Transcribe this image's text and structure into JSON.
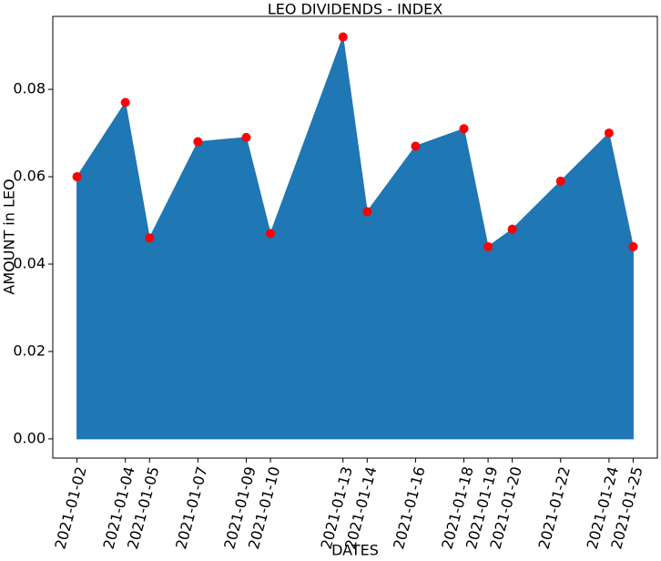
{
  "chart_data": {
    "type": "area",
    "title": "LEO DIVIDENDS - INDEX",
    "x_label": "DATES",
    "y_label": "AMOUNT in LEO",
    "x": [
      "2021-01-02",
      "2021-01-04",
      "2021-01-05",
      "2021-01-07",
      "2021-01-09",
      "2021-01-10",
      "2021-01-13",
      "2021-01-14",
      "2021-01-16",
      "2021-01-18",
      "2021-01-19",
      "2021-01-20",
      "2021-01-22",
      "2021-01-24",
      "2021-01-25"
    ],
    "values": [
      0.06,
      0.077,
      0.046,
      0.068,
      0.069,
      0.047,
      0.092,
      0.052,
      0.067,
      0.071,
      0.044,
      0.048,
      0.059,
      0.07,
      0.044
    ],
    "color": "#1f77b4",
    "marker_color": "#ff0000",
    "xlim": [
      "2021-01-01",
      "2021-01-26"
    ],
    "xticks": [
      "2021-01-02",
      "2021-01-04",
      "2021-01-05",
      "2021-01-07",
      "2021-01-09",
      "2021-01-10",
      "2021-01-13",
      "2021-01-14",
      "2021-01-16",
      "2021-01-18",
      "2021-01-19",
      "2021-01-20",
      "2021-01-22",
      "2021-01-24",
      "2021-01-25"
    ],
    "ylim": [
      -0.0044,
      0.0967
    ],
    "yticks": [
      {
        "value": 0,
        "label": "0.00"
      },
      {
        "value": 0.02,
        "label": "0.02"
      },
      {
        "value": 0.04,
        "label": "0.04"
      },
      {
        "value": 0.06,
        "label": "0.06"
      },
      {
        "value": 0.08,
        "label": "0.08"
      }
    ],
    "grid": false
  }
}
